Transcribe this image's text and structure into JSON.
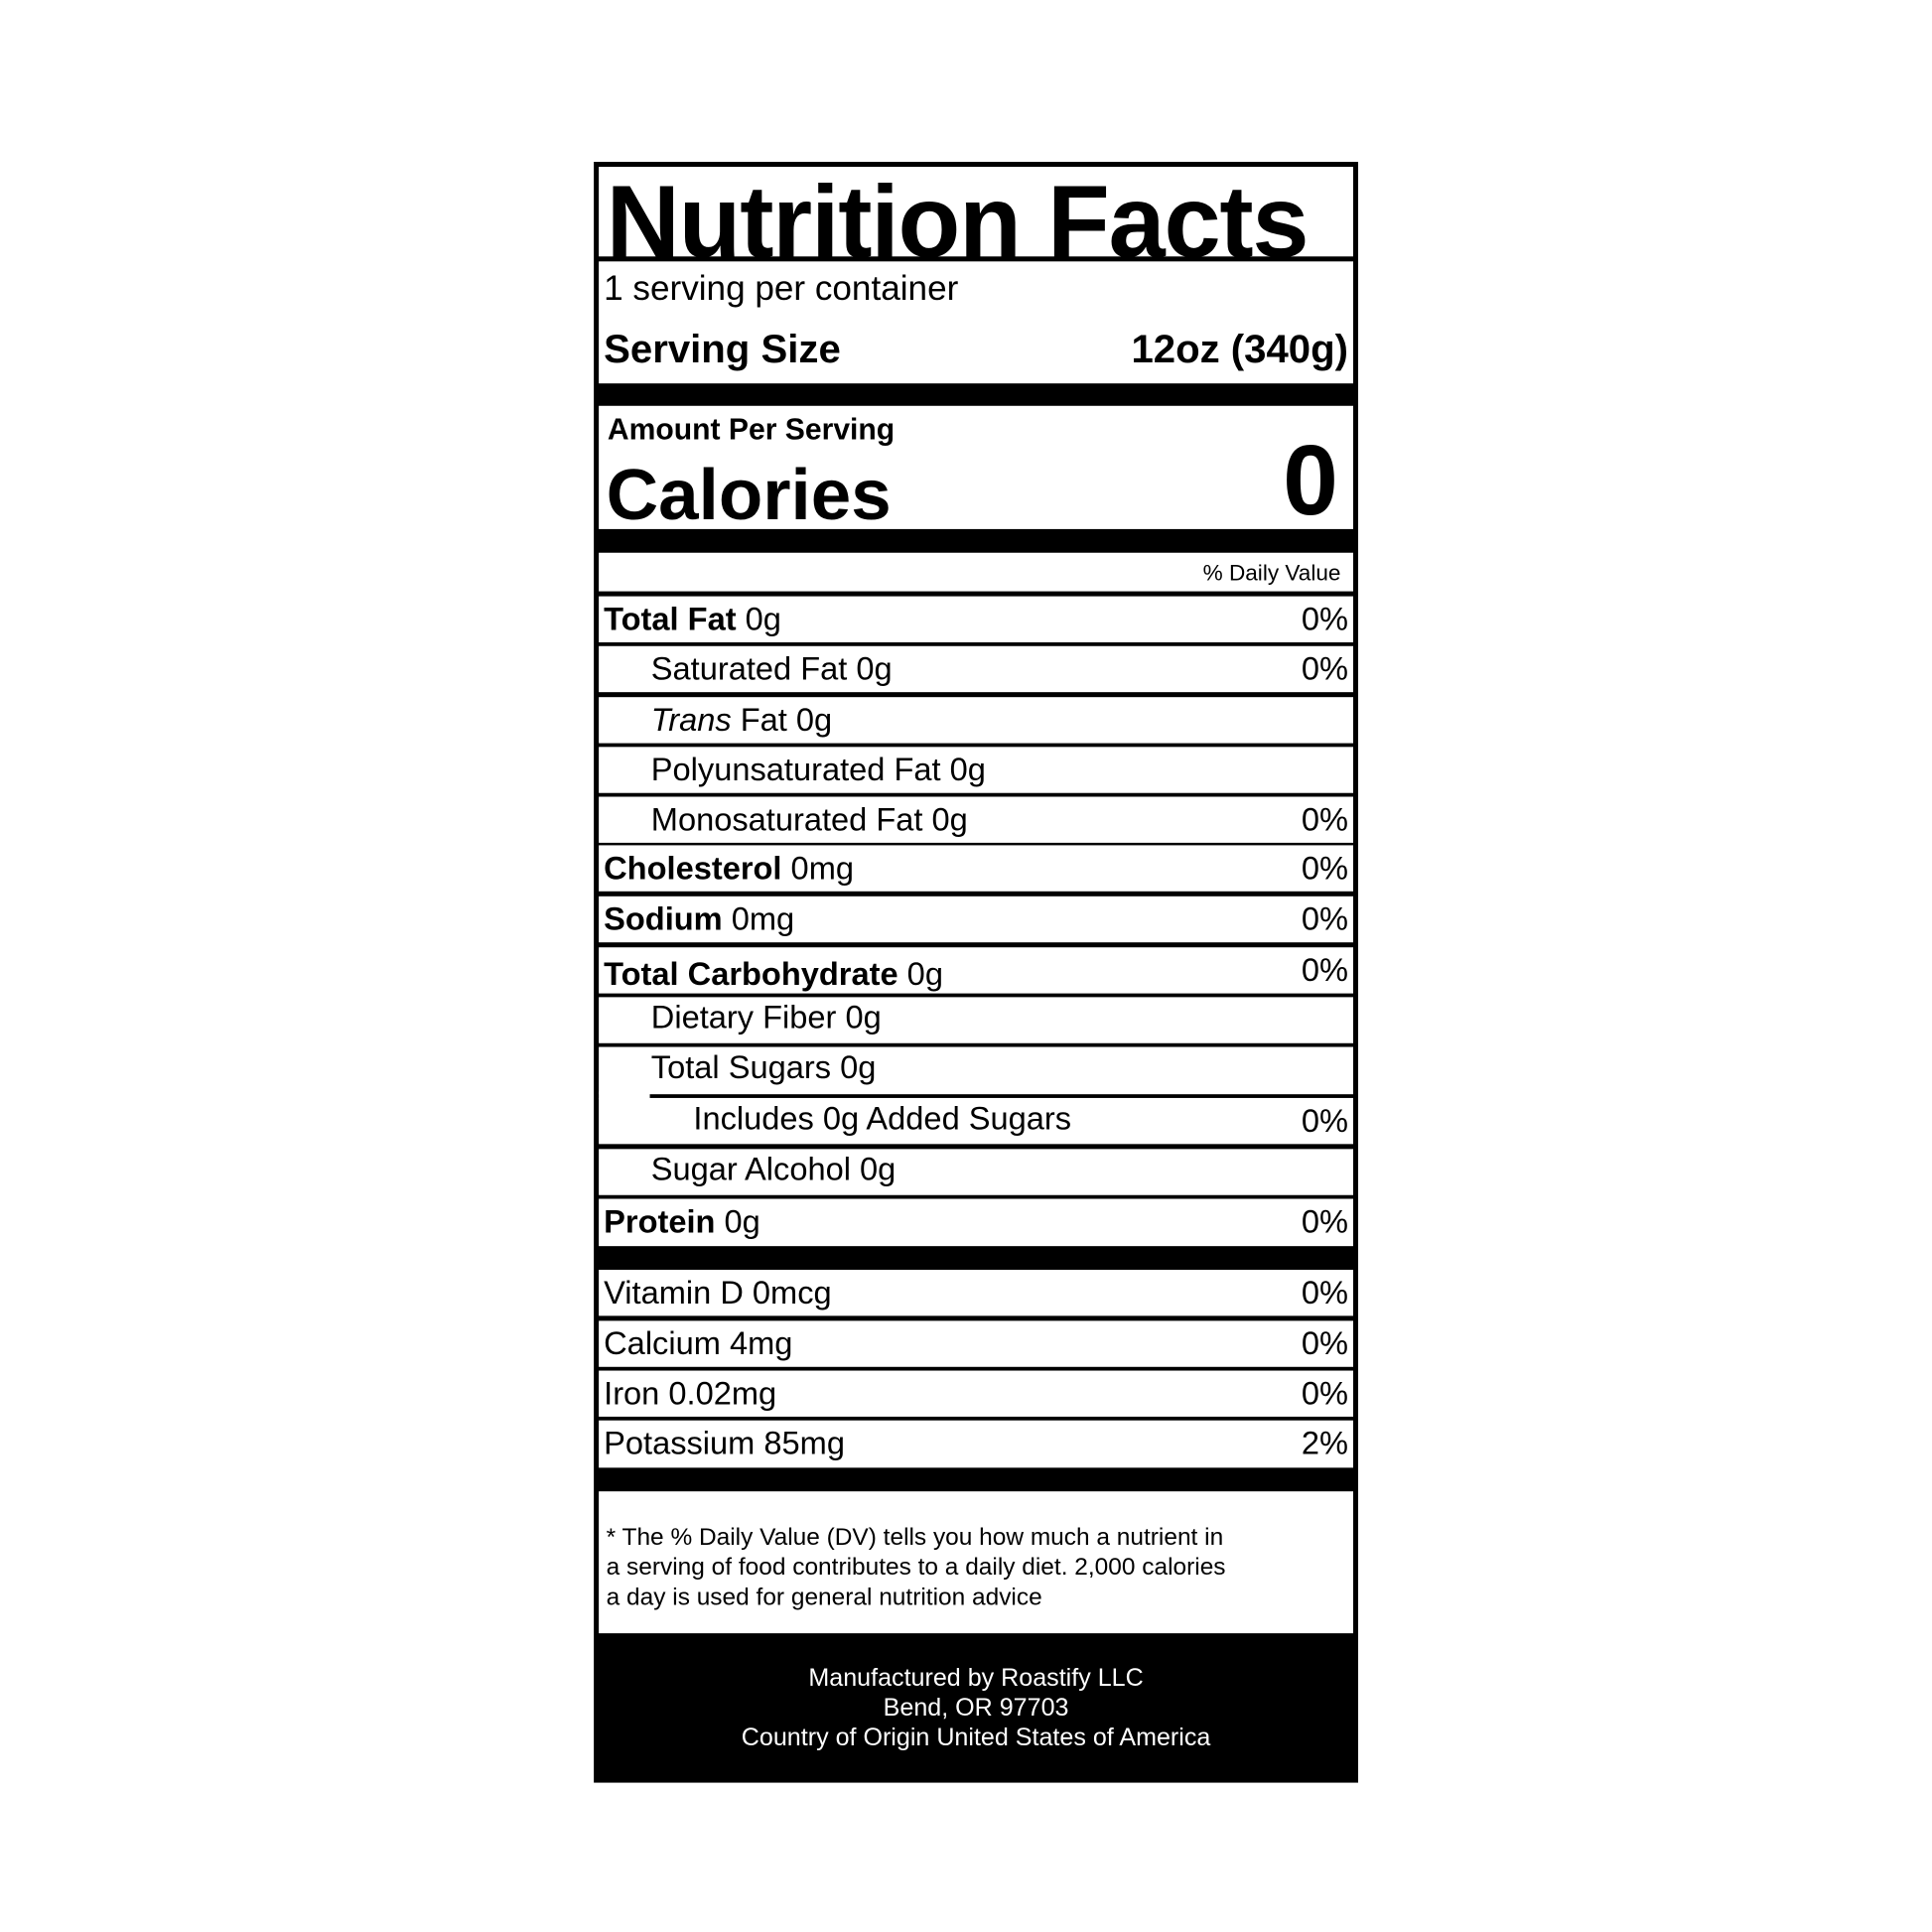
{
  "title": "Nutrition Facts",
  "servings_per_container": "1 serving per container",
  "serving_size": {
    "label": "Serving Size",
    "value": "12oz (340g)"
  },
  "amount_per_serving": "Amount Per Serving",
  "calories": {
    "label": "Calories",
    "value": "0"
  },
  "daily_value_header": "% Daily Value",
  "nutrients": [
    {
      "name": "Total Fat",
      "amount": "0g",
      "dv": "0%"
    },
    {
      "name": "Saturated Fat 0g",
      "dv": "0%"
    },
    {
      "name_italic": "Trans",
      "name": " Fat 0g",
      "dv": ""
    },
    {
      "name": "Polyunsaturated Fat 0g",
      "dv": ""
    },
    {
      "name": "Monosaturated Fat 0g",
      "dv": "0%"
    },
    {
      "name": "Cholesterol",
      "amount": "0mg",
      "dv": "0%"
    },
    {
      "name": "Sodium",
      "amount": "0mg",
      "dv": "0%"
    },
    {
      "name": "Total Carbohydrate",
      "amount": "0g",
      "dv": "0%"
    },
    {
      "name": "Dietary Fiber 0g",
      "dv": ""
    },
    {
      "name": "Total Sugars 0g",
      "dv": ""
    },
    {
      "name": "Includes 0g Added Sugars",
      "dv": "0%"
    },
    {
      "name": "Sugar Alcohol 0g",
      "dv": ""
    },
    {
      "name": "Protein",
      "amount": "0g",
      "dv": "0%"
    }
  ],
  "vitamins": [
    {
      "name": "Vitamin D 0mcg",
      "dv": "0%"
    },
    {
      "name": "Calcium 4mg",
      "dv": "0%"
    },
    {
      "name": "Iron 0.02mg",
      "dv": "0%"
    },
    {
      "name": "Potassium 85mg",
      "dv": "2%"
    }
  ],
  "footnote": [
    "* The % Daily Value (DV) tells you how much a nutrient in",
    "a serving of food contributes to a daily diet. 2,000 calories",
    "a day is used for general nutrition advice"
  ],
  "manufacturer": [
    "Manufactured by Roastify LLC",
    "Bend, OR 97703",
    "Country of Origin United States of America"
  ]
}
